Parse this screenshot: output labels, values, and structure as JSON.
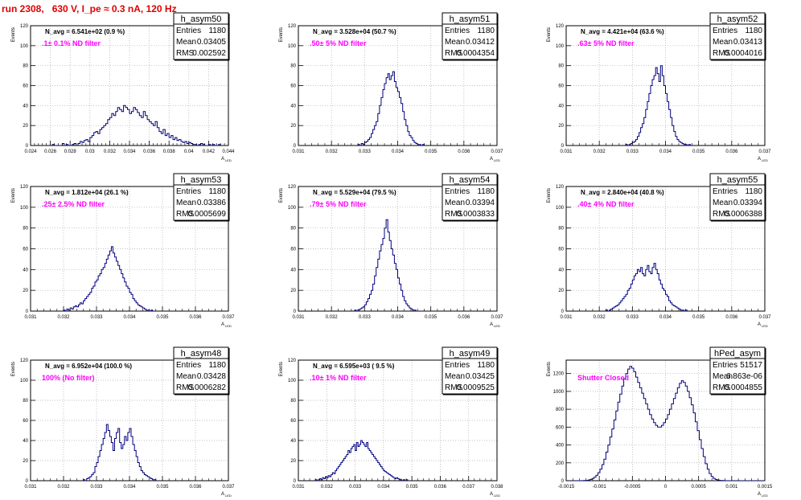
{
  "run_title": "run 2308,   630 V, I_pe ≈ 0.3 nA, 120 Hz",
  "colors": {
    "line": "#00007f",
    "magenta": "#ff00ff",
    "title": "#e00000",
    "grid": "#aaaaaa"
  },
  "common": {
    "ylabel": "Events",
    "xlabel": "A",
    "xlabel_sub": "LED",
    "entries_label": "Entries",
    "mean_label": "Mean",
    "rms_label": "RMS"
  },
  "chart_data": [
    {
      "type": "histogram",
      "name": "h_asym50",
      "entries": "1180",
      "mean": "0.03405",
      "rms": "0.002592",
      "navg": "N_avg = 6.541e+02 (0.9 %)",
      "note": ".1± 0.1% ND filter",
      "xlim": [
        0.024,
        0.044
      ],
      "ylim": [
        0,
        120
      ],
      "xticks": [
        0.024,
        0.026,
        0.028,
        0.03,
        0.032,
        0.034,
        0.036,
        0.038,
        0.04,
        0.042,
        0.044
      ],
      "xtick_labels": [
        "0.024",
        "0.026",
        "0.028",
        "0.03",
        "0.032",
        "0.034",
        "0.036",
        "0.038",
        "0.04",
        "0.042",
        "0.044"
      ],
      "yticks": [
        0,
        20,
        40,
        60,
        80,
        100,
        120
      ],
      "ytick_labels": [
        "0",
        "20",
        "40",
        "60",
        "80",
        "100",
        "120"
      ],
      "bin_start": 0.0262,
      "bin_width": 0.0002,
      "counts": [
        1,
        0,
        0,
        0,
        0,
        2,
        0,
        1,
        0,
        0,
        1,
        2,
        0,
        2,
        4,
        3,
        5,
        6,
        4,
        8,
        10,
        13,
        14,
        12,
        16,
        18,
        20,
        22,
        26,
        28,
        32,
        30,
        34,
        38,
        36,
        34,
        40,
        38,
        36,
        32,
        34,
        38,
        36,
        33,
        30,
        28,
        34,
        30,
        26,
        24,
        22,
        20,
        24,
        18,
        14,
        12,
        16,
        10,
        12,
        8,
        10,
        6,
        8,
        5,
        6,
        4,
        3,
        4,
        2,
        3,
        2,
        1,
        1,
        0,
        1,
        2,
        1,
        0,
        0,
        1,
        0,
        1,
        0,
        0,
        1
      ]
    },
    {
      "type": "histogram",
      "name": "h_asym51",
      "entries": "1180",
      "mean": "0.03412",
      "rms": "0.0004354",
      "navg": "N_avg = 3.528e+04 (50.7 %)",
      "note": ".50± 5% ND filter",
      "xlim": [
        0.031,
        0.037
      ],
      "ylim": [
        0,
        120
      ],
      "xticks": [
        0.031,
        0.032,
        0.033,
        0.034,
        0.035,
        0.036,
        0.037
      ],
      "xtick_labels": [
        "0.031",
        "0.032",
        "0.033",
        "0.034",
        "0.035",
        "0.036",
        "0.037"
      ],
      "yticks": [
        0,
        20,
        40,
        60,
        80,
        100,
        120
      ],
      "ytick_labels": [
        "0",
        "20",
        "40",
        "60",
        "80",
        "100",
        "120"
      ],
      "bin_start": 0.0328,
      "bin_width": 5e-05,
      "counts": [
        1,
        0,
        2,
        1,
        3,
        4,
        6,
        8,
        12,
        16,
        20,
        24,
        32,
        40,
        48,
        56,
        62,
        68,
        72,
        66,
        70,
        74,
        64,
        58,
        54,
        48,
        42,
        34,
        26,
        20,
        14,
        10,
        8,
        5,
        3,
        2,
        1,
        1,
        0,
        1
      ]
    },
    {
      "type": "histogram",
      "name": "h_asym52",
      "entries": "1180",
      "mean": "0.03413",
      "rms": "0.0004016",
      "navg": "N_avg = 4.421e+04 (63.6 %)",
      "note": ".63± 5% ND filter",
      "xlim": [
        0.031,
        0.037
      ],
      "ylim": [
        0,
        120
      ],
      "xticks": [
        0.031,
        0.032,
        0.033,
        0.034,
        0.035,
        0.036,
        0.037
      ],
      "xtick_labels": [
        "0.031",
        "0.032",
        "0.033",
        "0.034",
        "0.035",
        "0.036",
        "0.037"
      ],
      "yticks": [
        0,
        20,
        40,
        60,
        80,
        100,
        120
      ],
      "ytick_labels": [
        "0",
        "20",
        "40",
        "60",
        "80",
        "100",
        "120"
      ],
      "bin_start": 0.0328,
      "bin_width": 5e-05,
      "counts": [
        1,
        0,
        1,
        2,
        3,
        4,
        6,
        9,
        13,
        18,
        22,
        28,
        36,
        44,
        52,
        60,
        66,
        70,
        78,
        72,
        64,
        80,
        70,
        60,
        52,
        44,
        36,
        28,
        20,
        14,
        9,
        6,
        4,
        3,
        2,
        1,
        1,
        0,
        1,
        0
      ]
    },
    {
      "type": "histogram",
      "name": "h_asym53",
      "entries": "1180",
      "mean": "0.03386",
      "rms": "0.0005699",
      "navg": "N_avg = 1.812e+04 (26.1 %)",
      "note": ".25± 2.5% ND filter",
      "xlim": [
        0.031,
        0.037
      ],
      "ylim": [
        0,
        120
      ],
      "xticks": [
        0.031,
        0.032,
        0.033,
        0.034,
        0.035,
        0.036,
        0.037
      ],
      "xtick_labels": [
        "0.031",
        "0.032",
        "0.033",
        "0.034",
        "0.035",
        "0.036",
        "0.037"
      ],
      "yticks": [
        0,
        20,
        40,
        60,
        80,
        100,
        120
      ],
      "ytick_labels": [
        "0",
        "20",
        "40",
        "60",
        "80",
        "100",
        "120"
      ],
      "bin_start": 0.032,
      "bin_width": 5e-05,
      "counts": [
        1,
        0,
        2,
        1,
        3,
        2,
        4,
        5,
        4,
        6,
        8,
        7,
        10,
        12,
        14,
        16,
        18,
        22,
        24,
        28,
        30,
        34,
        36,
        40,
        42,
        46,
        50,
        54,
        58,
        62,
        56,
        52,
        48,
        44,
        40,
        36,
        32,
        28,
        24,
        22,
        18,
        16,
        12,
        10,
        8,
        6,
        5,
        4,
        3,
        2,
        1,
        1,
        0,
        1
      ]
    },
    {
      "type": "histogram",
      "name": "h_asym54",
      "entries": "1180",
      "mean": "0.03394",
      "rms": "0.0003833",
      "navg": "N_avg = 5.529e+04 (79.5 %)",
      "note": ".79± 5% ND filter",
      "xlim": [
        0.031,
        0.037
      ],
      "ylim": [
        0,
        120
      ],
      "xticks": [
        0.031,
        0.032,
        0.033,
        0.034,
        0.035,
        0.036,
        0.037
      ],
      "xtick_labels": [
        "0.031",
        "0.032",
        "0.033",
        "0.034",
        "0.035",
        "0.036",
        "0.037"
      ],
      "yticks": [
        0,
        20,
        40,
        60,
        80,
        100,
        120
      ],
      "ytick_labels": [
        "0",
        "20",
        "40",
        "60",
        "80",
        "100",
        "120"
      ],
      "bin_start": 0.0327,
      "bin_width": 5e-05,
      "counts": [
        1,
        0,
        1,
        2,
        3,
        4,
        6,
        9,
        12,
        16,
        20,
        26,
        34,
        42,
        50,
        58,
        64,
        70,
        80,
        88,
        76,
        68,
        60,
        54,
        46,
        40,
        32,
        26,
        20,
        14,
        10,
        7,
        5,
        3,
        2,
        1,
        1,
        0
      ]
    },
    {
      "type": "histogram",
      "name": "h_asym55",
      "entries": "1180",
      "mean": "0.03394",
      "rms": "0.0006388",
      "navg": "N_avg = 2.840e+04 (40.8 %)",
      "note": ".40± 4% ND filter",
      "xlim": [
        0.031,
        0.037
      ],
      "ylim": [
        0,
        120
      ],
      "xticks": [
        0.031,
        0.032,
        0.033,
        0.034,
        0.035,
        0.036,
        0.037
      ],
      "xtick_labels": [
        "0.031",
        "0.032",
        "0.033",
        "0.034",
        "0.035",
        "0.036",
        "0.037"
      ],
      "yticks": [
        0,
        20,
        40,
        60,
        80,
        100,
        120
      ],
      "ytick_labels": [
        "0",
        "20",
        "40",
        "60",
        "80",
        "100",
        "120"
      ],
      "bin_start": 0.0322,
      "bin_width": 5e-05,
      "counts": [
        1,
        0,
        1,
        2,
        3,
        4,
        5,
        6,
        8,
        10,
        12,
        14,
        16,
        20,
        22,
        26,
        30,
        34,
        36,
        40,
        38,
        42,
        36,
        34,
        40,
        44,
        38,
        36,
        42,
        46,
        40,
        36,
        30,
        26,
        22,
        20,
        16,
        14,
        10,
        8,
        6,
        5,
        4,
        3,
        2,
        1,
        1,
        0,
        1
      ]
    },
    {
      "type": "histogram",
      "name": "h_asym48",
      "entries": "1180",
      "mean": "0.03428",
      "rms": "0.0006282",
      "navg": "N_avg = 6.952e+04 (100.0 %)",
      "note": "100% (No filter)",
      "xlim": [
        0.031,
        0.037
      ],
      "ylim": [
        0,
        120
      ],
      "xticks": [
        0.031,
        0.032,
        0.033,
        0.034,
        0.035,
        0.036,
        0.037
      ],
      "xtick_labels": [
        "0.031",
        "0.032",
        "0.033",
        "0.034",
        "0.035",
        "0.036",
        "0.037"
      ],
      "yticks": [
        0,
        20,
        40,
        60,
        80,
        100,
        120
      ],
      "ytick_labels": [
        "0",
        "20",
        "40",
        "60",
        "80",
        "100",
        "120"
      ],
      "bin_start": 0.0326,
      "bin_width": 5e-05,
      "counts": [
        1,
        0,
        2,
        3,
        4,
        6,
        8,
        14,
        18,
        24,
        30,
        36,
        42,
        48,
        56,
        50,
        44,
        38,
        30,
        42,
        48,
        52,
        38,
        32,
        36,
        44,
        40,
        48,
        52,
        44,
        36,
        30,
        24,
        18,
        14,
        10,
        8,
        6,
        5,
        4,
        3,
        2,
        1,
        1,
        0
      ]
    },
    {
      "type": "histogram",
      "name": "h_asym49",
      "entries": "1180",
      "mean": "0.03425",
      "rms": "0.0009525",
      "navg": "N_avg = 6.595e+03 ( 9.5 %)",
      "note": ".10± 1% ND filter",
      "xlim": [
        0.031,
        0.038
      ],
      "ylim": [
        0,
        120
      ],
      "xticks": [
        0.031,
        0.032,
        0.033,
        0.034,
        0.035,
        0.036,
        0.037,
        0.038
      ],
      "xtick_labels": [
        "0.031",
        "0.032",
        "0.033",
        "0.034",
        "0.035",
        "0.036",
        "0.037",
        "0.038"
      ],
      "yticks": [
        0,
        20,
        40,
        60,
        80,
        100,
        120
      ],
      "ytick_labels": [
        "0",
        "20",
        "40",
        "60",
        "80",
        "100",
        "120"
      ],
      "bin_start": 0.0316,
      "bin_width": 5e-05,
      "counts": [
        1,
        0,
        1,
        2,
        1,
        3,
        2,
        4,
        3,
        5,
        4,
        6,
        8,
        7,
        10,
        12,
        14,
        16,
        18,
        20,
        22,
        24,
        26,
        30,
        28,
        32,
        34,
        36,
        30,
        38,
        34,
        36,
        40,
        38,
        36,
        34,
        38,
        32,
        30,
        28,
        26,
        24,
        22,
        20,
        18,
        16,
        14,
        12,
        10,
        9,
        8,
        7,
        6,
        5,
        4,
        3,
        2,
        3,
        2,
        1,
        1,
        0,
        1,
        0,
        1
      ]
    },
    {
      "type": "histogram",
      "name": "hPed_asym",
      "entries": "51517",
      "mean": "6.863e-06",
      "rms": "0.0004855",
      "navg": "",
      "note": "Shutter Closed",
      "xlim": [
        -0.0015,
        0.0015
      ],
      "ylim": [
        0,
        1350
      ],
      "xticks": [
        -0.0015,
        -0.001,
        -0.0005,
        0,
        0.0005,
        0.001,
        0.0015
      ],
      "xtick_labels": [
        "-0.0015",
        "-0.001",
        "-0.0005",
        "0",
        "0.0005",
        "0.001",
        "0.0015"
      ],
      "yticks": [
        0,
        200,
        400,
        600,
        800,
        1000,
        1200
      ],
      "ytick_labels": [
        "0",
        "200",
        "400",
        "600",
        "800",
        "1000",
        "1200"
      ],
      "bin_start": -0.0015,
      "bin_width": 3e-05,
      "counts": [
        0,
        0,
        0,
        0,
        0,
        0,
        0,
        0,
        1,
        2,
        4,
        8,
        14,
        24,
        40,
        60,
        90,
        130,
        180,
        240,
        320,
        400,
        490,
        580,
        680,
        780,
        880,
        970,
        1060,
        1140,
        1200,
        1250,
        1280,
        1260,
        1220,
        1160,
        1100,
        1040,
        980,
        920,
        860,
        800,
        740,
        690,
        650,
        620,
        600,
        600,
        620,
        650,
        690,
        740,
        800,
        860,
        920,
        980,
        1040,
        1090,
        1120,
        1100,
        1060,
        1000,
        930,
        850,
        760,
        660,
        560,
        460,
        360,
        270,
        190,
        130,
        80,
        48,
        26,
        14,
        8,
        4,
        2,
        1,
        0,
        0,
        0,
        0,
        0,
        0,
        0,
        0,
        0,
        0,
        0,
        0,
        0,
        0,
        0,
        0,
        0,
        0,
        0,
        0
      ]
    }
  ]
}
